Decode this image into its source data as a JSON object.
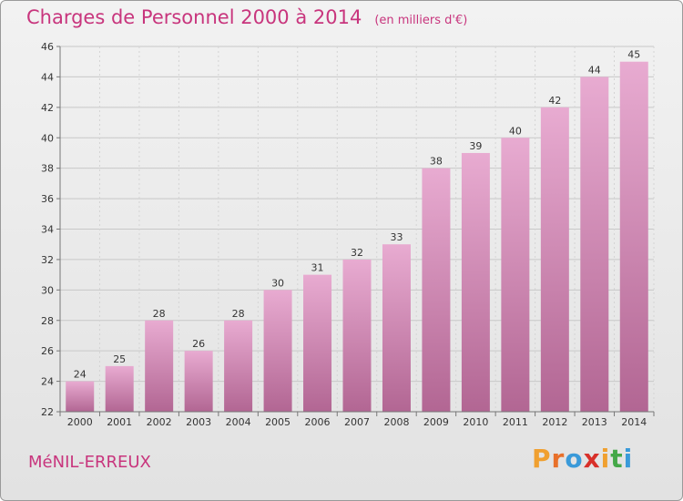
{
  "header": {
    "title": "Charges de Personnel 2000 à 2014",
    "subtitle": "(en milliers d'€)"
  },
  "footer": {
    "town": "MéNIL-ERREUX",
    "brand": "Proxiti"
  },
  "colors": {
    "accent": "#c8357d",
    "bar_top": "#e8abd1",
    "bar_bottom": "#b26693",
    "brand_letters": [
      "#f0a030",
      "#e8702a",
      "#3a9ad9",
      "#d8302a",
      "#f0a030",
      "#44a848",
      "#3a9ad9"
    ]
  },
  "chart_data": {
    "type": "bar",
    "categories": [
      "2000",
      "2001",
      "2002",
      "2003",
      "2004",
      "2005",
      "2006",
      "2007",
      "2008",
      "2009",
      "2010",
      "2011",
      "2012",
      "2013",
      "2014"
    ],
    "values": [
      24,
      25,
      28,
      26,
      28,
      30,
      31,
      32,
      33,
      38,
      39,
      40,
      42,
      44,
      45
    ],
    "title": "Charges de Personnel 2000 à 2014",
    "ylim": [
      22,
      46
    ],
    "yticks": [
      22,
      24,
      26,
      28,
      30,
      32,
      34,
      36,
      38,
      40,
      42,
      44,
      46
    ],
    "grid": true,
    "legend": "none"
  }
}
